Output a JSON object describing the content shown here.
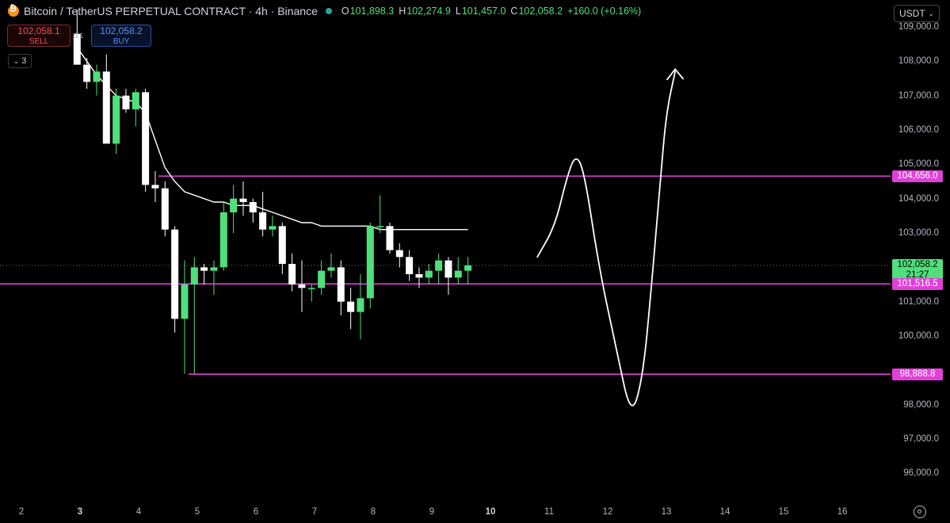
{
  "header": {
    "symbol_title": "Bitcoin / TetherUS PERPETUAL CONTRACT · 4h · Binance",
    "ohlc": {
      "open_label": "O",
      "open": "101,898.3",
      "high_label": "H",
      "high": "102,274.9",
      "low_label": "L",
      "low": "101,457.0",
      "close_label": "C",
      "close": "102,058.2",
      "change": "+160.0 (+0.16%)"
    }
  },
  "trade": {
    "sell_price": "102,058.1",
    "sell_label": "SELL",
    "spread": "0.1",
    "buy_price": "102,058.2",
    "buy_label": "BUY"
  },
  "indicators": {
    "collapsed_count": "3"
  },
  "currency_selector": {
    "value": "USDT"
  },
  "y_axis": {
    "ticks": [
      "109,000.0",
      "108,000.0",
      "107,000.0",
      "106,000.0",
      "105,000.0",
      "104,000.0",
      "103,000.0",
      "101,000.0",
      "100,000.0",
      "98,000.0",
      "97,000.0",
      "96,000.0"
    ]
  },
  "x_axis": {
    "ticks": [
      "2",
      "3",
      "4",
      "5",
      "6",
      "7",
      "8",
      "9",
      "10",
      "11",
      "12",
      "13",
      "14",
      "15",
      "16"
    ],
    "bold_ticks": [
      "3",
      "10"
    ]
  },
  "price_tags": {
    "resistance": "104,656.0",
    "current_price": "102,058.2",
    "countdown": "21:27",
    "support_mid": "101,516.5",
    "support_low": "98,888.8"
  },
  "colors": {
    "background": "#000000",
    "up_candle": "#4fe07c",
    "down_candle": "#ffffff",
    "level_line": "#e040d8",
    "moving_average": "#ffffff",
    "drawing": "#ffffff"
  },
  "icons": {
    "settings": "gear-icon",
    "dropdown": "chevron-down-icon",
    "asset": "bitcoin-icon",
    "status": "market-open-dot-icon"
  },
  "chart_data": {
    "type": "candlestick",
    "title": "Bitcoin / TetherUS PERPETUAL CONTRACT · 4h · Binance",
    "xlabel": "",
    "ylabel": "",
    "ylim": [
      95200,
      109600
    ],
    "levels": [
      104656.0,
      101516.5,
      98888.8
    ],
    "candles": [
      {
        "o": 108800,
        "h": 109500,
        "l": 108000,
        "c": 107900
      },
      {
        "o": 107900,
        "h": 108100,
        "l": 107200,
        "c": 107400
      },
      {
        "o": 107400,
        "h": 107900,
        "l": 107000,
        "c": 107700
      },
      {
        "o": 107700,
        "h": 108200,
        "l": 105700,
        "c": 105600
      },
      {
        "o": 105600,
        "h": 107200,
        "l": 105300,
        "c": 107000
      },
      {
        "o": 107000,
        "h": 107200,
        "l": 106500,
        "c": 106600
      },
      {
        "o": 106600,
        "h": 107200,
        "l": 106100,
        "c": 107100
      },
      {
        "o": 107100,
        "h": 107200,
        "l": 104200,
        "c": 104400
      },
      {
        "o": 104400,
        "h": 104800,
        "l": 103900,
        "c": 104300
      },
      {
        "o": 104300,
        "h": 104500,
        "l": 102900,
        "c": 103100
      },
      {
        "o": 103100,
        "h": 103200,
        "l": 100100,
        "c": 100500
      },
      {
        "o": 100500,
        "h": 102200,
        "l": 98900,
        "c": 101500
      },
      {
        "o": 101500,
        "h": 102300,
        "l": 98900,
        "c": 102000
      },
      {
        "o": 102000,
        "h": 102100,
        "l": 101500,
        "c": 101900
      },
      {
        "o": 101900,
        "h": 102200,
        "l": 101200,
        "c": 102000
      },
      {
        "o": 102000,
        "h": 103900,
        "l": 101900,
        "c": 103600
      },
      {
        "o": 103600,
        "h": 104400,
        "l": 103000,
        "c": 104000
      },
      {
        "o": 104000,
        "h": 104500,
        "l": 103500,
        "c": 103900
      },
      {
        "o": 103900,
        "h": 104000,
        "l": 103300,
        "c": 103600
      },
      {
        "o": 103600,
        "h": 104200,
        "l": 102900,
        "c": 103100
      },
      {
        "o": 103100,
        "h": 103500,
        "l": 102900,
        "c": 103200
      },
      {
        "o": 103200,
        "h": 103300,
        "l": 101800,
        "c": 102100
      },
      {
        "o": 102100,
        "h": 102400,
        "l": 101300,
        "c": 101500
      },
      {
        "o": 101500,
        "h": 102200,
        "l": 100700,
        "c": 101400
      },
      {
        "o": 101400,
        "h": 101500,
        "l": 101000,
        "c": 101400
      },
      {
        "o": 101400,
        "h": 102200,
        "l": 101200,
        "c": 101900
      },
      {
        "o": 101900,
        "h": 102400,
        "l": 101700,
        "c": 102000
      },
      {
        "o": 102000,
        "h": 102200,
        "l": 100600,
        "c": 101000
      },
      {
        "o": 101000,
        "h": 101400,
        "l": 100200,
        "c": 100700
      },
      {
        "o": 100700,
        "h": 101800,
        "l": 99900,
        "c": 101100
      },
      {
        "o": 101100,
        "h": 103300,
        "l": 100800,
        "c": 103200
      },
      {
        "o": 103200,
        "h": 104100,
        "l": 103000,
        "c": 103200
      },
      {
        "o": 103200,
        "h": 103300,
        "l": 102400,
        "c": 102500
      },
      {
        "o": 102500,
        "h": 102700,
        "l": 102000,
        "c": 102300
      },
      {
        "o": 102300,
        "h": 102500,
        "l": 101600,
        "c": 101800
      },
      {
        "o": 101800,
        "h": 102000,
        "l": 101400,
        "c": 101700
      },
      {
        "o": 101700,
        "h": 102100,
        "l": 101500,
        "c": 101900
      },
      {
        "o": 101900,
        "h": 102400,
        "l": 101500,
        "c": 102200
      },
      {
        "o": 102200,
        "h": 102300,
        "l": 101200,
        "c": 101700
      },
      {
        "o": 101700,
        "h": 102300,
        "l": 101500,
        "c": 101900
      },
      {
        "o": 101900,
        "h": 102300,
        "l": 101500,
        "c": 102058
      }
    ],
    "moving_average": [
      108400,
      108000,
      107600,
      107300,
      107000,
      106900,
      106800,
      106500,
      105700,
      104900,
      104500,
      104200,
      104100,
      104000,
      103900,
      103900,
      103800,
      103800,
      103800,
      103700,
      103600,
      103500,
      103400,
      103300,
      103300,
      103200,
      103200,
      103200,
      103200,
      103200,
      103200,
      103100,
      103100,
      103100,
      103100,
      103100,
      103100,
      103100,
      103100,
      103100,
      103100
    ],
    "projection_path": [
      {
        "day": 10.8,
        "price": 102300
      },
      {
        "day": 11.1,
        "price": 103200
      },
      {
        "day": 11.3,
        "price": 104600
      },
      {
        "day": 11.45,
        "price": 105300
      },
      {
        "day": 11.6,
        "price": 104800
      },
      {
        "day": 11.85,
        "price": 102000
      },
      {
        "day": 12.15,
        "price": 99600
      },
      {
        "day": 12.4,
        "price": 97600
      },
      {
        "day": 12.6,
        "price": 98800
      },
      {
        "day": 12.75,
        "price": 101500
      },
      {
        "day": 12.9,
        "price": 104600
      },
      {
        "day": 13.0,
        "price": 106500
      },
      {
        "day": 13.15,
        "price": 107700
      }
    ]
  }
}
